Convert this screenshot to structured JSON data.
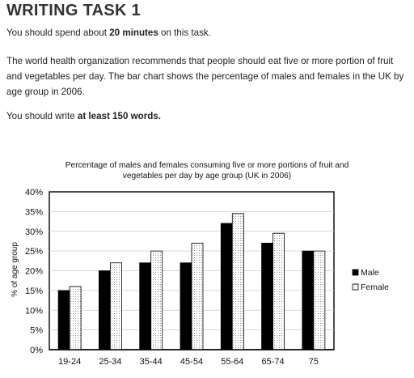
{
  "task": {
    "title": "WRITING TASK 1",
    "time_prefix": "You should spend about ",
    "time_bold": "20 minutes",
    "time_suffix": " on this task.",
    "prompt": "The world health organization recommends that people should eat five or more portion of fruit and vegetables per day. The bar chart shows the percentage of males and females in the UK by age group in 2006.",
    "words_prefix": "You should write ",
    "words_bold": "at least 150 words."
  },
  "chart_data": {
    "type": "bar",
    "title_line1": "Percentage of males and females consuming five or more portions of fruit and",
    "title_line2": "vegetables per day by age group (UK in 2006)",
    "xlabel": "",
    "ylabel": "% of age group",
    "ylim": [
      0,
      40
    ],
    "yticks": [
      "0%",
      "5%",
      "10%",
      "15%",
      "20%",
      "25%",
      "30%",
      "35%",
      "40%"
    ],
    "categories": [
      "19-24",
      "25-34",
      "35-44",
      "45-54",
      "55-64",
      "65-74",
      "75"
    ],
    "series": [
      {
        "name": "Male",
        "values": [
          15,
          20,
          22,
          22,
          32,
          27,
          25
        ],
        "color": "#000000",
        "pattern": "solid"
      },
      {
        "name": "Female",
        "values": [
          16,
          22,
          25,
          27,
          34.5,
          29.5,
          25
        ],
        "color": "#ffffff",
        "pattern": "dotted"
      }
    ],
    "legend_position": "right",
    "grid": true
  }
}
